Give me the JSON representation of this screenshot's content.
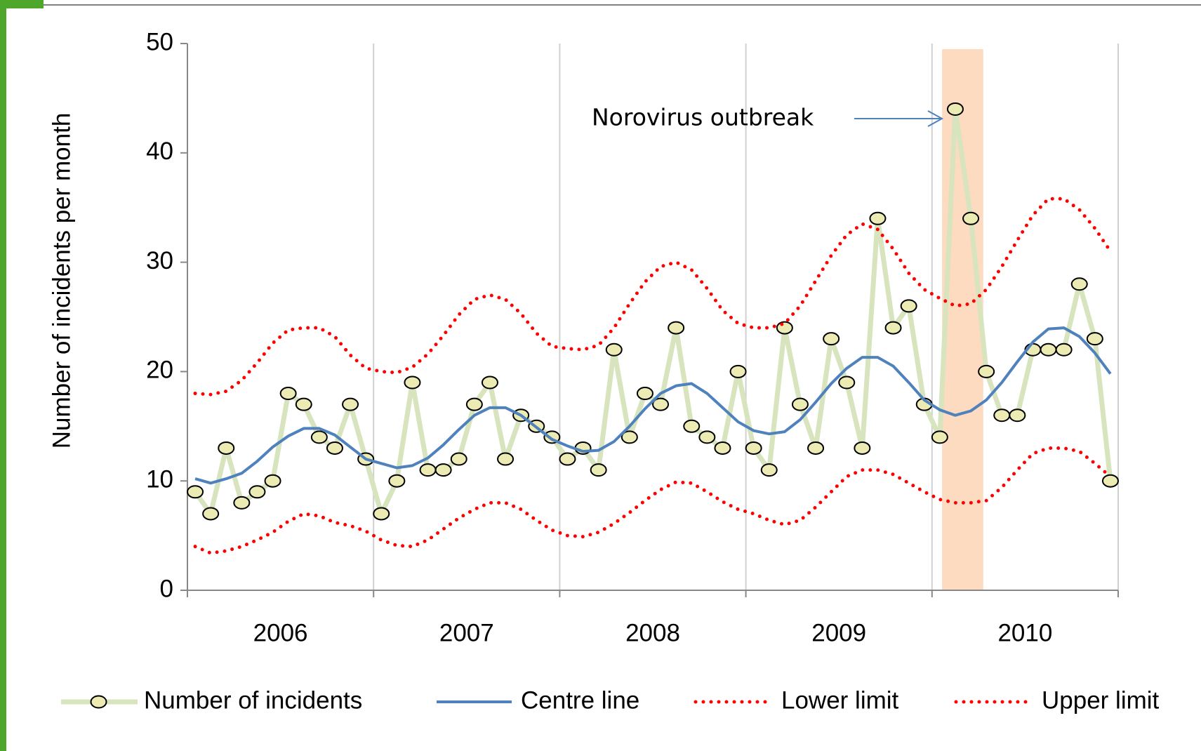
{
  "chart_data": {
    "type": "line",
    "y_label": "Number of incidents per month",
    "years": [
      "2006",
      "2007",
      "2008",
      "2009",
      "2010"
    ],
    "annotation": "Norovirus outbreak",
    "ylim": [
      0,
      50
    ],
    "yticks": [
      0,
      10,
      20,
      30,
      40,
      50
    ],
    "grid": true,
    "series": [
      {
        "name": "Number of incidents",
        "color": "#d7e4bd",
        "style": "markers",
        "values": [
          9,
          7,
          13,
          8,
          9,
          10,
          18,
          17,
          14,
          13,
          17,
          12,
          7,
          10,
          19,
          11,
          11,
          12,
          17,
          19,
          12,
          16,
          15,
          14,
          12,
          13,
          11,
          22,
          14,
          18,
          17,
          24,
          15,
          14,
          13,
          20,
          13,
          11,
          24,
          17,
          13,
          23,
          19,
          13,
          34,
          24,
          26,
          17,
          14,
          44,
          34,
          20,
          16,
          16,
          22,
          22,
          22,
          28,
          23,
          10
        ]
      },
      {
        "name": "Centre line",
        "color": "#4f81bd",
        "style": "solid",
        "values": [
          10.2,
          9.8,
          10.2,
          10.7,
          11.8,
          13.1,
          14.1,
          14.8,
          14.8,
          14.2,
          13.1,
          12.0,
          11.6,
          11.2,
          11.4,
          12.1,
          13.3,
          14.7,
          16.0,
          16.7,
          16.7,
          16.0,
          14.9,
          13.8,
          13.2,
          12.7,
          12.8,
          13.6,
          15.0,
          16.6,
          18.0,
          18.7,
          18.9,
          18.0,
          16.7,
          15.4,
          14.6,
          14.3,
          14.5,
          15.6,
          17.2,
          18.9,
          20.3,
          21.3,
          21.3,
          20.5,
          19.0,
          17.4,
          16.5,
          16.0,
          16.4,
          17.4,
          19.0,
          20.9,
          22.7,
          23.9,
          24.0,
          23.2,
          21.7,
          19.8
        ]
      },
      {
        "name": "Lower limit",
        "color": "#ff0000",
        "style": "dotted",
        "values": [
          4,
          3.4,
          3.6,
          4.0,
          4.6,
          5.3,
          6.3,
          7.0,
          6.8,
          6.2,
          5.9,
          5.4,
          4.6,
          4.1,
          4.0,
          4.6,
          5.6,
          6.6,
          7.4,
          8.0,
          8.0,
          7.4,
          6.4,
          5.5,
          5.0,
          4.9,
          5.3,
          6.1,
          7.1,
          8.2,
          9.2,
          9.9,
          9.8,
          9.0,
          8.1,
          7.4,
          7.0,
          6.4,
          6.0,
          6.4,
          7.6,
          9.0,
          10.4,
          11.0,
          11.0,
          10.6,
          9.8,
          9.0,
          8.3,
          8.0,
          8.0,
          8.2,
          9.4,
          11.0,
          12.5,
          13.0,
          13.0,
          12.7,
          11.6,
          10.4
        ]
      },
      {
        "name": "Upper limit",
        "color": "#ff0000",
        "style": "dotted",
        "values": [
          18,
          17.9,
          18.2,
          19.2,
          20.8,
          22.6,
          23.8,
          24.0,
          24.0,
          23.2,
          21.5,
          20.3,
          20.0,
          19.9,
          20.4,
          21.6,
          23.3,
          25.2,
          26.6,
          27.0,
          26.6,
          25.3,
          23.5,
          22.3,
          22.1,
          22.0,
          22.4,
          24.0,
          26.2,
          28.2,
          29.6,
          30.0,
          29.3,
          27.6,
          25.6,
          24.4,
          24.0,
          24.0,
          24.4,
          26.0,
          28.3,
          30.6,
          32.5,
          33.5,
          33.0,
          31.2,
          29.0,
          27.5,
          26.7,
          26.0,
          26.2,
          27.5,
          29.6,
          32.0,
          34.3,
          35.8,
          35.8,
          34.8,
          33.1,
          31.0
        ]
      }
    ]
  }
}
